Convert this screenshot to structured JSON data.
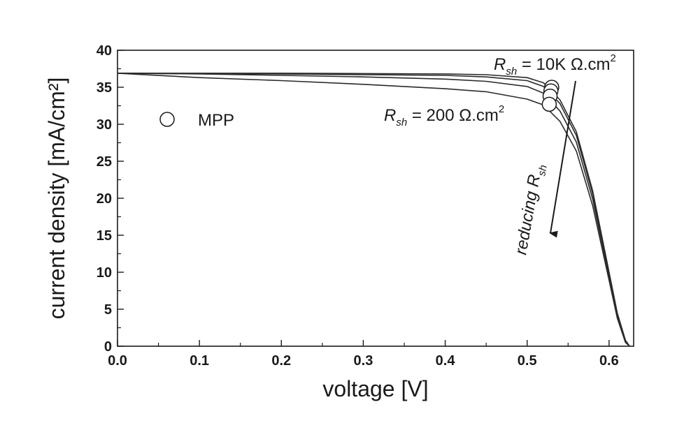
{
  "chart_data": {
    "type": "line",
    "xlabel": "voltage [V]",
    "ylabel": "current density [mA/cm²]",
    "xlim": [
      0.0,
      0.63
    ],
    "ylim": [
      0,
      40
    ],
    "xticks": [
      "0.0",
      "0.1",
      "0.2",
      "0.3",
      "0.4",
      "0.5",
      "0.6"
    ],
    "xtick_values": [
      0.0,
      0.1,
      0.2,
      0.3,
      0.4,
      0.5,
      0.6
    ],
    "yticks": [
      "0",
      "5",
      "10",
      "15",
      "20",
      "25",
      "30",
      "35",
      "40"
    ],
    "ytick_values": [
      0,
      5,
      10,
      15,
      20,
      25,
      30,
      35,
      40
    ],
    "grid": false,
    "series": [
      {
        "x": [
          0,
          0.1,
          0.2,
          0.3,
          0.4,
          0.45,
          0.5,
          0.52,
          0.54,
          0.56,
          0.58,
          0.6,
          0.61,
          0.62,
          0.625
        ],
        "y": [
          36.9,
          36.9,
          36.9,
          36.85,
          36.8,
          36.7,
          36.3,
          35.6,
          33.3,
          29.0,
          21.0,
          10.0,
          4.5,
          0.8,
          0
        ]
      },
      {
        "x": [
          0,
          0.1,
          0.2,
          0.3,
          0.4,
          0.45,
          0.5,
          0.52,
          0.54,
          0.56,
          0.58,
          0.6,
          0.61,
          0.62,
          0.625
        ],
        "y": [
          36.9,
          36.85,
          36.8,
          36.7,
          36.6,
          36.4,
          35.9,
          35.1,
          32.8,
          28.5,
          20.6,
          9.8,
          4.3,
          0.7,
          0
        ]
      },
      {
        "x": [
          0,
          0.1,
          0.2,
          0.3,
          0.4,
          0.45,
          0.5,
          0.52,
          0.54,
          0.56,
          0.58,
          0.6,
          0.61,
          0.62,
          0.625
        ],
        "y": [
          36.9,
          36.8,
          36.6,
          36.4,
          36.1,
          35.8,
          35.1,
          34.2,
          31.8,
          27.6,
          19.9,
          9.4,
          4.1,
          0.6,
          0
        ]
      },
      {
        "x": [
          0,
          0.1,
          0.2,
          0.3,
          0.4,
          0.45,
          0.5,
          0.52,
          0.54,
          0.56,
          0.58,
          0.6,
          0.61,
          0.62,
          0.625
        ],
        "y": [
          36.9,
          36.3,
          35.9,
          35.4,
          34.8,
          34.4,
          33.4,
          32.6,
          30.4,
          26.4,
          19.0,
          8.9,
          3.8,
          0.5,
          0
        ]
      }
    ],
    "markers": {
      "legend_label": "MPP",
      "points": [
        {
          "x": 0.53,
          "y": 35.0
        },
        {
          "x": 0.529,
          "y": 34.5
        },
        {
          "x": 0.528,
          "y": 33.8
        },
        {
          "x": 0.527,
          "y": 32.7
        }
      ]
    },
    "annotations": {
      "rsh_high": {
        "symbol": "R",
        "subscript": "sh",
        "text": " = 10K Ω.cm",
        "superscript": "2"
      },
      "rsh_low": {
        "symbol": "R",
        "subscript": "sh",
        "text": " = 200 Ω.cm",
        "superscript": "2"
      },
      "arrow_label": {
        "text": "reducing ",
        "symbol": "R",
        "subscript": "sh"
      }
    },
    "colors": {
      "line": "#2a2a2a",
      "axis": "#1a1a1a",
      "background": "#ffffff"
    }
  }
}
